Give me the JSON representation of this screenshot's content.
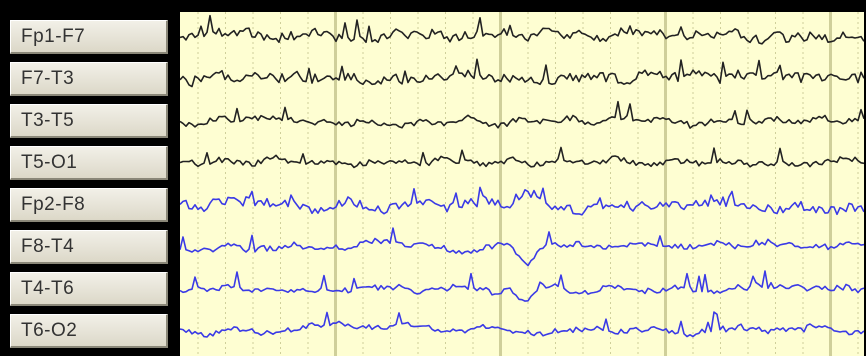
{
  "channels": [
    {
      "label": "Fp1-F7",
      "color": "#222222"
    },
    {
      "label": "F7-T3",
      "color": "#222222"
    },
    {
      "label": "T3-T5",
      "color": "#222222"
    },
    {
      "label": "T5-O1",
      "color": "#222222"
    },
    {
      "label": "Fp2-F8",
      "color": "#3a3ae6"
    },
    {
      "label": "F8-T4",
      "color": "#3a3ae6"
    },
    {
      "label": "T4-T6",
      "color": "#3a3ae6"
    },
    {
      "label": "T6-O2",
      "color": "#3a3ae6"
    }
  ],
  "colors": {
    "trace_background": "#fefed2",
    "grid_line": "#cfcf9a",
    "left_channels": "#222222",
    "right_channels": "#3a3ae6"
  }
}
